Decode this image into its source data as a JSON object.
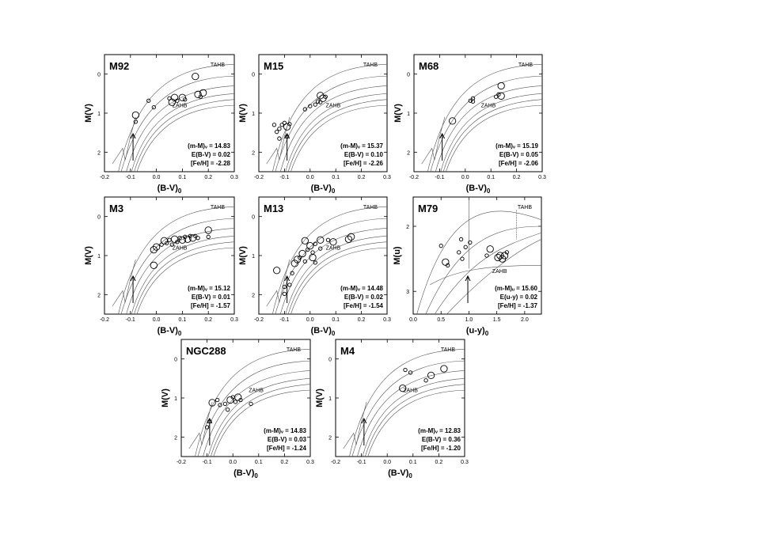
{
  "chart_data": [
    {
      "type": "scatter",
      "title": "M92",
      "xlabel": "(B-V)",
      "xlabel_sub": "0",
      "ylabel": "M(V)",
      "xlim": [
        -0.2,
        0.3
      ],
      "ylim": [
        2.5,
        -0.5
      ],
      "xticks": [
        "-0.2",
        "-0.1",
        "0.0",
        "0.1",
        "0.2",
        "0.3"
      ],
      "yticks": [
        "0",
        "1",
        "2"
      ],
      "annotations": [
        "TAHB",
        "ZAHB"
      ],
      "arrow_x": -0.09,
      "params": [
        "(m-M)ᵥ = 14.83",
        "E(B-V) = 0.02",
        "[Fe/H]  = -2.28"
      ],
      "points": [
        {
          "x": -0.08,
          "y": 1.05,
          "s": 2
        },
        {
          "x": -0.08,
          "y": 1.22,
          "s": 1
        },
        {
          "x": -0.03,
          "y": 0.68,
          "s": 1
        },
        {
          "x": -0.01,
          "y": 0.85,
          "s": 1
        },
        {
          "x": 0.05,
          "y": 0.62,
          "s": 1
        },
        {
          "x": 0.06,
          "y": 0.72,
          "s": 2
        },
        {
          "x": 0.07,
          "y": 0.6,
          "s": 2
        },
        {
          "x": 0.08,
          "y": 0.68,
          "s": 1
        },
        {
          "x": 0.1,
          "y": 0.6,
          "s": 2
        },
        {
          "x": 0.11,
          "y": 0.65,
          "s": 1
        },
        {
          "x": 0.15,
          "y": 0.06,
          "s": 2
        },
        {
          "x": 0.16,
          "y": 0.52,
          "s": 2
        },
        {
          "x": 0.17,
          "y": 0.58,
          "s": 1
        },
        {
          "x": 0.18,
          "y": 0.48,
          "s": 2
        }
      ]
    },
    {
      "type": "scatter",
      "title": "M15",
      "xlabel": "(B-V)",
      "xlabel_sub": "0",
      "ylabel": "M(V)",
      "xlim": [
        -0.2,
        0.3
      ],
      "ylim": [
        2.5,
        -0.5
      ],
      "xticks": [
        "-0.2",
        "-0.1",
        "0.0",
        "0.1",
        "0.2",
        "0.3"
      ],
      "yticks": [
        "0",
        "1",
        "2"
      ],
      "annotations": [
        "TAHB",
        "ZAHB"
      ],
      "arrow_x": -0.09,
      "params": [
        "(m-M)ᵥ = 15.37",
        "E(B-V) = 0.10",
        "[Fe/H]  = -2.26"
      ],
      "points": [
        {
          "x": -0.14,
          "y": 1.3,
          "s": 1
        },
        {
          "x": -0.13,
          "y": 1.48,
          "s": 1
        },
        {
          "x": -0.12,
          "y": 1.4,
          "s": 1
        },
        {
          "x": -0.11,
          "y": 1.3,
          "s": 1
        },
        {
          "x": -0.1,
          "y": 1.25,
          "s": 1
        },
        {
          "x": -0.09,
          "y": 1.35,
          "s": 2
        },
        {
          "x": -0.08,
          "y": 1.28,
          "s": 1
        },
        {
          "x": -0.12,
          "y": 1.65,
          "s": 1
        },
        {
          "x": -0.09,
          "y": 1.6,
          "s": 1
        },
        {
          "x": -0.02,
          "y": 0.9,
          "s": 1
        },
        {
          "x": 0.0,
          "y": 0.82,
          "s": 1
        },
        {
          "x": 0.02,
          "y": 0.78,
          "s": 1
        },
        {
          "x": 0.03,
          "y": 0.7,
          "s": 1
        },
        {
          "x": 0.04,
          "y": 0.55,
          "s": 2
        },
        {
          "x": 0.05,
          "y": 0.62,
          "s": 2
        },
        {
          "x": 0.06,
          "y": 0.58,
          "s": 1
        },
        {
          "x": 0.04,
          "y": 0.72,
          "s": 1
        }
      ]
    },
    {
      "type": "scatter",
      "title": "M68",
      "xlabel": "(B-V)",
      "xlabel_sub": "0",
      "ylabel": "M(V)",
      "xlim": [
        -0.2,
        0.3
      ],
      "ylim": [
        2.5,
        -0.5
      ],
      "xticks": [
        "-0.2",
        "-0.1",
        "0.0",
        "0.1",
        "0.2",
        "0.3"
      ],
      "yticks": [
        "0",
        "1",
        "2"
      ],
      "annotations": [
        "TAHB",
        "ZAHB"
      ],
      "arrow_x": -0.09,
      "params": [
        "(m-M)ᵥ = 15.19",
        "E(B-V) = 0.05",
        "[Fe/H]  = -2.06"
      ],
      "points": [
        {
          "x": -0.05,
          "y": 1.2,
          "s": 2
        },
        {
          "x": 0.02,
          "y": 0.68,
          "s": 1
        },
        {
          "x": 0.03,
          "y": 0.62,
          "s": 1
        },
        {
          "x": 0.03,
          "y": 0.7,
          "s": 1
        },
        {
          "x": 0.12,
          "y": 0.58,
          "s": 1
        },
        {
          "x": 0.13,
          "y": 0.52,
          "s": 1
        },
        {
          "x": 0.14,
          "y": 0.56,
          "s": 2
        },
        {
          "x": 0.14,
          "y": 0.3,
          "s": 2
        }
      ]
    },
    {
      "type": "scatter",
      "title": "M3",
      "xlabel": "(B-V)",
      "xlabel_sub": "0",
      "ylabel": "M(V)",
      "xlim": [
        -0.2,
        0.3
      ],
      "ylim": [
        2.5,
        -0.5
      ],
      "xticks": [
        "-0.2",
        "-0.1",
        "0.0",
        "0.1",
        "0.2",
        "0.3"
      ],
      "yticks": [
        "0",
        "1",
        "2"
      ],
      "annotations": [
        "TAHB",
        "ZAHB"
      ],
      "arrow_x": -0.09,
      "params": [
        "(m-M)ᵥ = 15.12",
        "E(B-V) = 0.01",
        "[Fe/H]  = -1.57"
      ],
      "points": [
        {
          "x": -0.01,
          "y": 1.25,
          "s": 2
        },
        {
          "x": -0.01,
          "y": 0.85,
          "s": 2
        },
        {
          "x": 0.0,
          "y": 0.78,
          "s": 2
        },
        {
          "x": 0.02,
          "y": 0.72,
          "s": 1
        },
        {
          "x": 0.03,
          "y": 0.62,
          "s": 2
        },
        {
          "x": 0.04,
          "y": 0.68,
          "s": 1
        },
        {
          "x": 0.05,
          "y": 0.6,
          "s": 1
        },
        {
          "x": 0.06,
          "y": 0.72,
          "s": 1
        },
        {
          "x": 0.07,
          "y": 0.58,
          "s": 2
        },
        {
          "x": 0.08,
          "y": 0.65,
          "s": 1
        },
        {
          "x": 0.09,
          "y": 0.55,
          "s": 1
        },
        {
          "x": 0.1,
          "y": 0.6,
          "s": 2
        },
        {
          "x": 0.11,
          "y": 0.52,
          "s": 1
        },
        {
          "x": 0.12,
          "y": 0.58,
          "s": 2
        },
        {
          "x": 0.13,
          "y": 0.5,
          "s": 1
        },
        {
          "x": 0.14,
          "y": 0.55,
          "s": 2
        },
        {
          "x": 0.15,
          "y": 0.5,
          "s": 1
        },
        {
          "x": 0.16,
          "y": 0.55,
          "s": 1
        },
        {
          "x": 0.2,
          "y": 0.35,
          "s": 2
        },
        {
          "x": 0.2,
          "y": 0.52,
          "s": 1
        }
      ]
    },
    {
      "type": "scatter",
      "title": "M13",
      "xlabel": "(B-V)",
      "xlabel_sub": "0",
      "ylabel": "M(V)",
      "xlim": [
        -0.2,
        0.3
      ],
      "ylim": [
        2.5,
        -0.5
      ],
      "xticks": [
        "-0.2",
        "-0.1",
        "0.0",
        "0.1",
        "0.2",
        "0.3"
      ],
      "yticks": [
        "0",
        "1",
        "2"
      ],
      "annotations": [
        "TAHB",
        "ZAHB"
      ],
      "arrow_x": -0.09,
      "params": [
        "(m-M)ᵥ = 14.48",
        "E(B-V) = 0.02",
        "[Fe/H]  = -1.54"
      ],
      "points": [
        {
          "x": -0.13,
          "y": 1.38,
          "s": 2
        },
        {
          "x": -0.1,
          "y": 1.8,
          "s": 1
        },
        {
          "x": -0.1,
          "y": 1.98,
          "s": 1
        },
        {
          "x": -0.08,
          "y": 1.75,
          "s": 1
        },
        {
          "x": -0.07,
          "y": 1.45,
          "s": 1
        },
        {
          "x": -0.06,
          "y": 1.2,
          "s": 2
        },
        {
          "x": -0.05,
          "y": 1.1,
          "s": 2
        },
        {
          "x": -0.04,
          "y": 1.05,
          "s": 1
        },
        {
          "x": -0.03,
          "y": 0.95,
          "s": 2
        },
        {
          "x": -0.02,
          "y": 1.15,
          "s": 1
        },
        {
          "x": -0.02,
          "y": 0.62,
          "s": 2
        },
        {
          "x": -0.01,
          "y": 0.85,
          "s": 1
        },
        {
          "x": 0.0,
          "y": 0.75,
          "s": 2
        },
        {
          "x": 0.01,
          "y": 1.05,
          "s": 2
        },
        {
          "x": 0.01,
          "y": 0.92,
          "s": 1
        },
        {
          "x": 0.02,
          "y": 0.7,
          "s": 1
        },
        {
          "x": 0.02,
          "y": 1.18,
          "s": 1
        },
        {
          "x": 0.04,
          "y": 0.6,
          "s": 2
        },
        {
          "x": 0.04,
          "y": 0.82,
          "s": 1
        },
        {
          "x": 0.07,
          "y": 0.6,
          "s": 1
        },
        {
          "x": 0.09,
          "y": 0.65,
          "s": 2
        },
        {
          "x": 0.15,
          "y": 0.58,
          "s": 2
        },
        {
          "x": 0.16,
          "y": 0.52,
          "s": 2
        }
      ]
    },
    {
      "type": "scatter",
      "title": "M79",
      "xlabel": "(u-y)",
      "xlabel_sub": "0",
      "ylabel": "M(u)",
      "xlim": [
        0.0,
        2.3
      ],
      "ylim": [
        3.35,
        1.55
      ],
      "xticks": [
        "0.0",
        "0.5",
        "1.0",
        "1.5",
        "2.0"
      ],
      "yticks": [
        "2",
        "3"
      ],
      "annotations": [
        "TAHB",
        "ZAHB"
      ],
      "arrow_x": 0.98,
      "params": [
        "(m-M)ᵤ = 15.60",
        "E(u-y)  = 0.02",
        "[Fe/H]  = -1.37"
      ],
      "points": [
        {
          "x": 0.5,
          "y": 2.3,
          "s": 1
        },
        {
          "x": 0.58,
          "y": 2.55,
          "s": 2
        },
        {
          "x": 0.62,
          "y": 2.6,
          "s": 1
        },
        {
          "x": 0.82,
          "y": 2.4,
          "s": 1
        },
        {
          "x": 0.86,
          "y": 2.2,
          "s": 1
        },
        {
          "x": 0.88,
          "y": 2.5,
          "s": 1
        },
        {
          "x": 0.94,
          "y": 2.32,
          "s": 1
        },
        {
          "x": 1.02,
          "y": 2.25,
          "s": 1
        },
        {
          "x": 1.32,
          "y": 2.45,
          "s": 1
        },
        {
          "x": 1.38,
          "y": 2.35,
          "s": 2
        },
        {
          "x": 1.52,
          "y": 2.48,
          "s": 2
        },
        {
          "x": 1.56,
          "y": 2.45,
          "s": 2
        },
        {
          "x": 1.6,
          "y": 2.5,
          "s": 2
        },
        {
          "x": 1.64,
          "y": 2.45,
          "s": 2
        },
        {
          "x": 1.68,
          "y": 2.4,
          "s": 1
        }
      ]
    },
    {
      "type": "scatter",
      "title": "NGC288",
      "xlabel": "(B-V)",
      "xlabel_sub": "0",
      "ylabel": "M(V)",
      "xlim": [
        -0.2,
        0.3
      ],
      "ylim": [
        2.5,
        -0.5
      ],
      "xticks": [
        "-0.2",
        "-0.1",
        "0.0",
        "0.1",
        "0.2",
        "0.3"
      ],
      "yticks": [
        "0",
        "1",
        "2"
      ],
      "annotations": [
        "TAHB",
        "ZAHB"
      ],
      "arrow_x": -0.09,
      "params": [
        "(m-M)ᵥ = 14.83",
        "E(B-V) = 0.03",
        "[Fe/H]  = -1.24"
      ],
      "points": [
        {
          "x": -0.1,
          "y": 1.75,
          "s": 1
        },
        {
          "x": -0.09,
          "y": 1.6,
          "s": 1
        },
        {
          "x": -0.08,
          "y": 1.12,
          "s": 2
        },
        {
          "x": -0.06,
          "y": 1.05,
          "s": 1
        },
        {
          "x": -0.05,
          "y": 1.18,
          "s": 1
        },
        {
          "x": -0.03,
          "y": 1.15,
          "s": 1
        },
        {
          "x": -0.02,
          "y": 1.3,
          "s": 1
        },
        {
          "x": -0.01,
          "y": 1.05,
          "s": 2
        },
        {
          "x": 0.0,
          "y": 0.98,
          "s": 1
        },
        {
          "x": 0.01,
          "y": 1.1,
          "s": 1
        },
        {
          "x": 0.02,
          "y": 0.98,
          "s": 2
        },
        {
          "x": 0.03,
          "y": 1.05,
          "s": 1
        },
        {
          "x": 0.07,
          "y": 1.15,
          "s": 1
        }
      ]
    },
    {
      "type": "scatter",
      "title": "M4",
      "xlabel": "(B-V)",
      "xlabel_sub": "0",
      "ylabel": "M(V)",
      "xlim": [
        -0.2,
        0.3
      ],
      "ylim": [
        2.5,
        -0.5
      ],
      "xticks": [
        "-0.2",
        "-0.1",
        "0.0",
        "0.1",
        "0.2",
        "0.3"
      ],
      "yticks": [
        "0",
        "1",
        "2"
      ],
      "annotations": [
        "TAHB",
        "ZAHB"
      ],
      "arrow_x": -0.09,
      "params": [
        "(m-M)ᵥ = 12.83",
        "E(B-V) = 0.36",
        "[Fe/H]  = -1.20"
      ],
      "points": [
        {
          "x": 0.06,
          "y": 0.75,
          "s": 2
        },
        {
          "x": 0.07,
          "y": 0.28,
          "s": 1
        },
        {
          "x": 0.09,
          "y": 0.35,
          "s": 1
        },
        {
          "x": 0.15,
          "y": 0.55,
          "s": 1
        },
        {
          "x": 0.17,
          "y": 0.42,
          "s": 2
        },
        {
          "x": 0.22,
          "y": 0.25,
          "s": 2
        }
      ]
    }
  ]
}
